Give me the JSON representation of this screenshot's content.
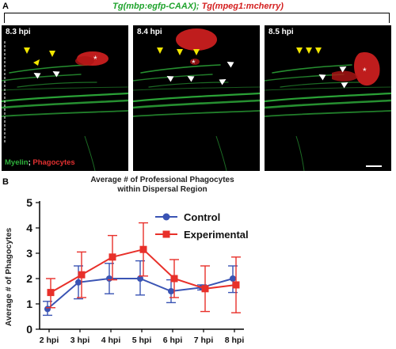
{
  "panel_a": {
    "letter": "A",
    "title_green": "Tg(mbp:egfp-CAAX)",
    "title_sep": ";",
    "title_red": "Tg(mpeg1:mcherry)",
    "frames": [
      {
        "label": "8.3 hpi"
      },
      {
        "label": "8.4 hpi"
      },
      {
        "label": "8.5 hpi"
      }
    ],
    "legend_myelin": "Myelin",
    "legend_sep": ";",
    "legend_phago": "Phagocytes",
    "asterisk": "*",
    "colors": {
      "myelin": "#2fb33c",
      "phagocyte": "#d42020",
      "arrow_yellow": "#f2e600",
      "arrow_white": "#ffffff"
    }
  },
  "panel_b": {
    "letter": "B"
  },
  "chart_data": {
    "type": "line",
    "title_line1": "Average # of Professional Phagocytes",
    "title_line2": "within Dispersal Region",
    "ylabel": "Average # of Phagocytes",
    "xlabel": "",
    "categories": [
      "2 hpi",
      "3 hpi",
      "4 hpi",
      "5 hpi",
      "6 hpi",
      "7 hpi",
      "8 hpi"
    ],
    "ylim": [
      0,
      5
    ],
    "yticks": [
      "0",
      "1",
      "2",
      "3",
      "4",
      "5"
    ],
    "legend_position": "upper-right",
    "series": [
      {
        "name": "Control",
        "color": "#3a54b4",
        "marker": "circle",
        "values": [
          0.8,
          1.85,
          2.0,
          2.0,
          1.5,
          1.65,
          2.0
        ],
        "err_low": [
          0.55,
          1.2,
          1.4,
          1.35,
          1.05,
          1.55,
          1.45
        ],
        "err_high": [
          1.1,
          2.5,
          2.6,
          2.7,
          1.95,
          1.75,
          2.5
        ]
      },
      {
        "name": "Experimental",
        "color": "#e8302a",
        "marker": "square",
        "values": [
          1.45,
          2.15,
          2.85,
          3.15,
          2.0,
          1.6,
          1.75
        ],
        "err_low": [
          0.85,
          1.25,
          1.95,
          2.1,
          1.25,
          0.7,
          0.65
        ],
        "err_high": [
          2.0,
          3.05,
          3.7,
          4.2,
          2.75,
          2.5,
          2.85
        ]
      }
    ]
  }
}
